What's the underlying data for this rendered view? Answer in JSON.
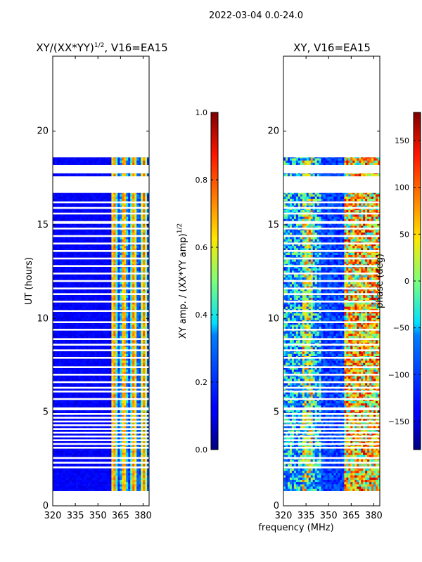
{
  "figure": {
    "suptitle": "2022-03-04 0.0-24.0",
    "xlabel": "frequency (MHz)"
  },
  "chart_data": [
    {
      "type": "heatmap",
      "title_main": "XY/(XX*YY)",
      "title_sup": "1/2",
      "title_tail": ", V16=EA15",
      "xlabel": "",
      "ylabel": "UT (hours)",
      "xlim": [
        320,
        384
      ],
      "ylim": [
        0,
        24
      ],
      "xticks": [
        320,
        335,
        350,
        365,
        380
      ],
      "yticks": [
        0,
        5,
        10,
        15,
        20
      ],
      "colorbar": {
        "label_main": "XY amp. / (XX*YY amp)",
        "label_sup": "1/2",
        "range": [
          0.0,
          1.0
        ],
        "ticks": [
          "0.0",
          "0.2",
          "0.4",
          "0.6",
          "0.8",
          "1.0"
        ],
        "tick_values": [
          0.0,
          0.2,
          0.4,
          0.6,
          0.8,
          1.0
        ],
        "colormap": "jet"
      },
      "data_blocks_ut": [
        [
          0.8,
          16.7
        ],
        [
          17.6,
          17.75
        ],
        [
          18.2,
          18.6
        ]
      ],
      "gap_rows_ut": [
        2.05,
        2.3,
        2.55,
        3.1,
        3.3,
        3.5,
        3.7,
        3.9,
        4.1,
        4.3,
        4.5,
        4.7,
        4.9,
        5.15,
        5.2,
        5.7,
        6.1,
        6.3,
        6.6,
        7.0,
        7.4,
        7.9,
        8.3,
        8.6,
        8.9,
        9.4,
        9.8,
        10.4,
        10.9,
        11.3,
        11.6,
        12.0,
        12.4,
        12.8,
        13.2,
        13.6,
        14.0,
        14.4,
        14.8,
        15.1,
        15.15,
        15.6,
        15.9,
        16.2
      ]
    },
    {
      "type": "heatmap",
      "title": "XY, V16=EA15",
      "xlabel": "",
      "ylabel": "",
      "xlim": [
        320,
        384
      ],
      "ylim": [
        0,
        24
      ],
      "xticks": [
        320,
        335,
        350,
        365,
        380
      ],
      "yticks": [
        0,
        5,
        10,
        15,
        20
      ],
      "colorbar": {
        "label": "phase (deg)",
        "range": [
          -180,
          180
        ],
        "ticks": [
          "150",
          "100",
          "50",
          "0",
          "−50",
          "−100",
          "−150"
        ],
        "tick_values": [
          150,
          100,
          50,
          0,
          -50,
          -100,
          -150
        ],
        "colormap": "jet"
      },
      "data_blocks_ut": [
        [
          0.8,
          16.7
        ],
        [
          17.6,
          17.75
        ],
        [
          18.2,
          18.6
        ]
      ],
      "gap_rows_ut": [
        2.05,
        2.3,
        2.55,
        3.1,
        3.3,
        3.5,
        3.7,
        3.9,
        4.1,
        4.3,
        4.5,
        4.7,
        4.9,
        5.15,
        5.2,
        5.7,
        6.1,
        6.3,
        6.6,
        7.0,
        7.4,
        7.9,
        8.3,
        8.6,
        8.9,
        9.4,
        9.8,
        10.4,
        10.9,
        11.3,
        11.6,
        12.0,
        12.4,
        12.8,
        13.2,
        13.6,
        14.0,
        14.4,
        14.8,
        15.1,
        15.15,
        15.6,
        15.9,
        16.2
      ]
    }
  ]
}
